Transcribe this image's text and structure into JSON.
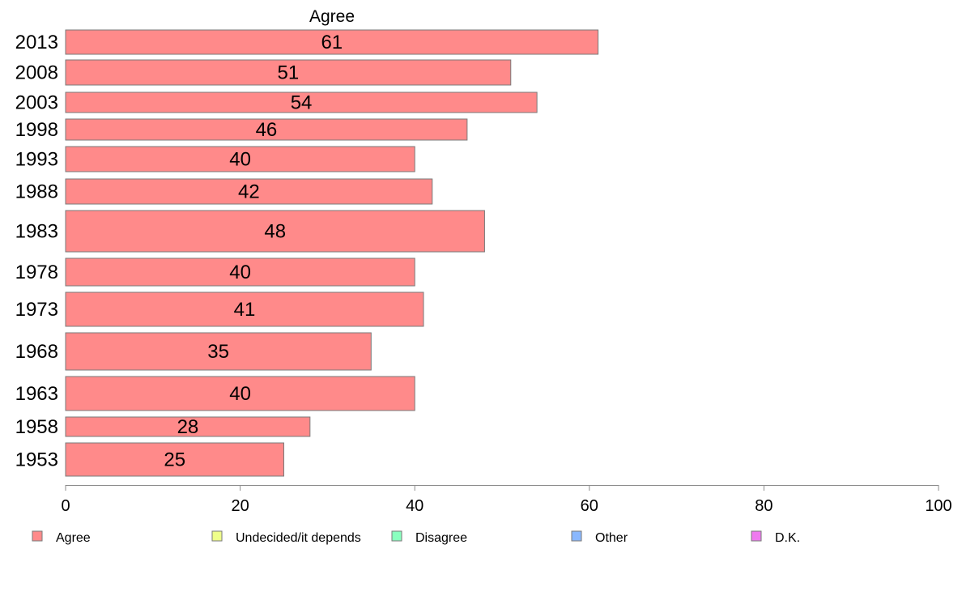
{
  "chart_data": {
    "type": "bar",
    "orientation": "horizontal",
    "title": "Agree",
    "categories": [
      "2013",
      "2008",
      "2003",
      "1998",
      "1993",
      "1988",
      "1983",
      "1978",
      "1973",
      "1968",
      "1963",
      "1958",
      "1953"
    ],
    "series": [
      {
        "name": "Agree",
        "values": [
          61,
          51,
          54,
          46,
          40,
          42,
          48,
          40,
          41,
          35,
          40,
          28,
          25
        ],
        "color": "#ff8a8a"
      }
    ],
    "xlim": [
      0,
      100
    ],
    "x_ticks": [
      "0",
      "20",
      "40",
      "60",
      "80",
      "100"
    ],
    "grid": false,
    "legend": {
      "placement": "bottom",
      "items": [
        {
          "label": "Agree",
          "color": "#ff8a8a"
        },
        {
          "label": "Undecided/it depends",
          "color": "#efff8a"
        },
        {
          "label": "Disagree",
          "color": "#8affbf"
        },
        {
          "label": "Other",
          "color": "#8ab8ff"
        },
        {
          "label": "D.K.",
          "color": "#ef7aef"
        }
      ]
    }
  }
}
